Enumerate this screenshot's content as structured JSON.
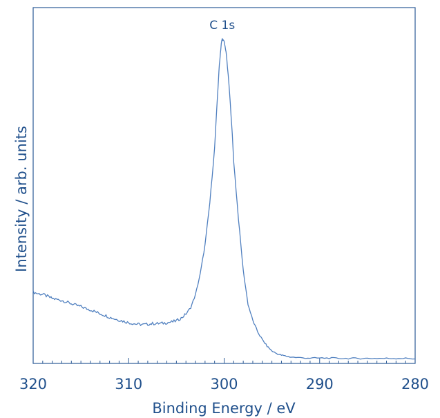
{
  "chart_data": {
    "type": "line",
    "title": "",
    "xlabel": "Binding Energy / eV",
    "ylabel": "Intensity / arb. units",
    "xlim": [
      320,
      280
    ],
    "x_reversed": true,
    "ylim": [
      0,
      100
    ],
    "y_ticks_shown": false,
    "grid": false,
    "legend": "none",
    "x_ticks": [
      {
        "value": 320,
        "label": "320"
      },
      {
        "value": 310,
        "label": "310"
      },
      {
        "value": 300,
        "label": "300"
      },
      {
        "value": 290,
        "label": "290"
      },
      {
        "value": 280,
        "label": "280"
      }
    ],
    "annotations": [
      {
        "text": "C 1s",
        "x": 300.2,
        "y": 103
      }
    ],
    "colors": {
      "line": "#4f7fbf",
      "axes": "#2b5a96",
      "text": "#1f4f8b"
    },
    "series": [
      {
        "values_xy": [
          [
            320.0,
            21.3
          ],
          [
            319.5,
            20.8
          ],
          [
            319.0,
            20.6
          ],
          [
            318.5,
            20.0
          ],
          [
            318.0,
            19.3
          ],
          [
            317.5,
            19.0
          ],
          [
            317.0,
            18.7
          ],
          [
            316.5,
            18.2
          ],
          [
            316.0,
            17.7
          ],
          [
            315.5,
            17.2
          ],
          [
            315.0,
            16.8
          ],
          [
            314.5,
            16.2
          ],
          [
            314.0,
            15.8
          ],
          [
            313.5,
            15.2
          ],
          [
            313.0,
            14.6
          ],
          [
            312.5,
            14.1
          ],
          [
            312.0,
            13.5
          ],
          [
            311.5,
            13.0
          ],
          [
            311.0,
            12.6
          ],
          [
            310.5,
            12.2
          ],
          [
            310.0,
            11.8
          ],
          [
            309.5,
            11.5
          ],
          [
            309.0,
            11.3
          ],
          [
            308.5,
            11.2
          ],
          [
            308.0,
            11.3
          ],
          [
            307.5,
            11.5
          ],
          [
            307.0,
            11.5
          ],
          [
            306.5,
            11.6
          ],
          [
            306.0,
            11.8
          ],
          [
            305.5,
            12.0
          ],
          [
            305.0,
            12.4
          ],
          [
            304.5,
            13.2
          ],
          [
            304.0,
            14.5
          ],
          [
            303.5,
            16.5
          ],
          [
            303.0,
            20.5
          ],
          [
            302.5,
            27.0
          ],
          [
            302.0,
            36.0
          ],
          [
            301.5,
            49.0
          ],
          [
            301.0,
            66.0
          ],
          [
            300.7,
            82.0
          ],
          [
            300.5,
            92.0
          ],
          [
            300.3,
            98.5
          ],
          [
            300.2,
            100.0
          ],
          [
            300.0,
            99.0
          ],
          [
            299.8,
            96.0
          ],
          [
            299.5,
            86.0
          ],
          [
            299.2,
            73.0
          ],
          [
            299.0,
            62.0
          ],
          [
            298.5,
            44.0
          ],
          [
            298.0,
            28.0
          ],
          [
            297.5,
            17.5
          ],
          [
            297.0,
            12.5
          ],
          [
            296.5,
            9.0
          ],
          [
            296.0,
            6.5
          ],
          [
            295.5,
            4.5
          ],
          [
            295.0,
            3.0
          ],
          [
            294.5,
            2.2
          ],
          [
            294.0,
            1.7
          ],
          [
            293.5,
            1.4
          ],
          [
            293.0,
            1.1
          ],
          [
            292.0,
            0.9
          ],
          [
            291.0,
            0.8
          ],
          [
            290.0,
            0.8
          ],
          [
            289.0,
            0.8
          ],
          [
            288.0,
            0.7
          ],
          [
            287.0,
            0.7
          ],
          [
            286.0,
            0.7
          ],
          [
            285.0,
            0.7
          ],
          [
            284.0,
            0.7
          ],
          [
            283.0,
            0.7
          ],
          [
            282.0,
            0.7
          ],
          [
            281.0,
            0.7
          ],
          [
            280.0,
            0.6
          ]
        ]
      }
    ]
  }
}
